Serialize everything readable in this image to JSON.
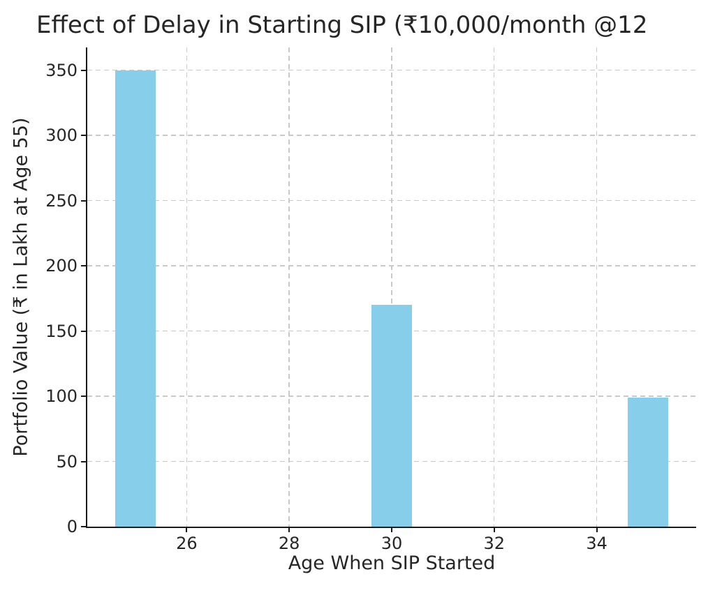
{
  "chart_data": {
    "type": "bar",
    "title": "Effect of Delay in Starting SIP (₹10,000/month @12",
    "xlabel": "Age When SIP Started",
    "ylabel": "Portfolio Value (₹ in Lakh at Age 55)",
    "categories": [
      25,
      30,
      35
    ],
    "values": [
      350,
      170,
      99
    ],
    "bar_width": 0.8,
    "bar_color": "#87CEEB",
    "xlim": [
      24.06,
      35.94
    ],
    "ylim": [
      0,
      367.5
    ],
    "x_ticks": [
      26,
      28,
      30,
      32,
      34
    ],
    "y_ticks": [
      0,
      50,
      100,
      150,
      200,
      250,
      300,
      350
    ],
    "grid": true,
    "grid_style": "dashed",
    "grid_color": "#c9c9c9",
    "axis_color": "#1a1a1a",
    "text_color": "#262626",
    "legend": "none",
    "title_truncated_at_right_edge": true
  }
}
